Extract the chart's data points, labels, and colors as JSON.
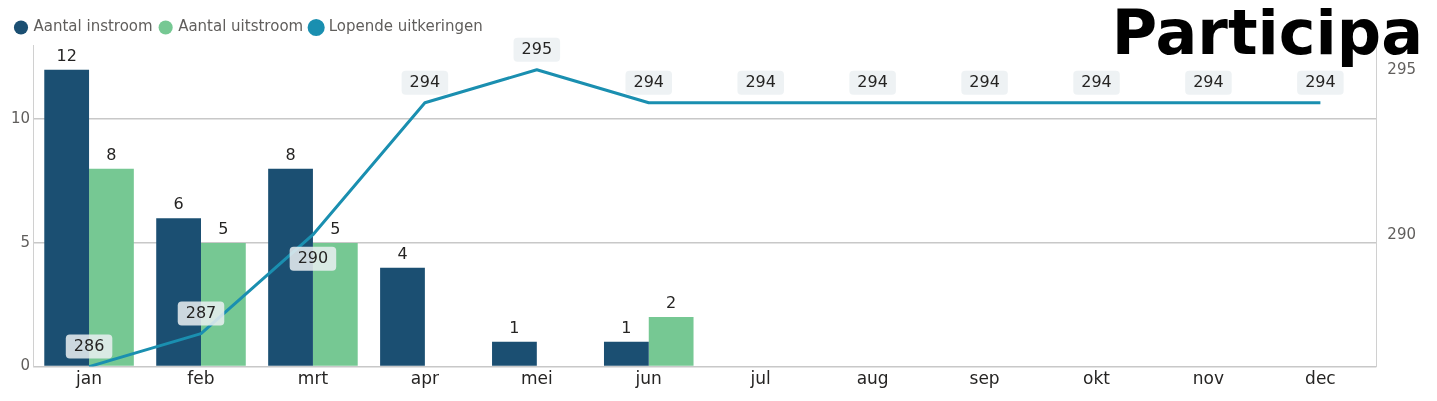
{
  "chart_data": {
    "type": "bar",
    "title": "Participa",
    "categories": [
      "jan",
      "feb",
      "mrt",
      "apr",
      "mei",
      "jun",
      "jul",
      "aug",
      "sep",
      "okt",
      "nov",
      "dec"
    ],
    "series": [
      {
        "name": "Aantal instroom",
        "color": "#1b4f72",
        "values": [
          12,
          6,
          8,
          4,
          1,
          1,
          null,
          null,
          null,
          null,
          null,
          null
        ]
      },
      {
        "name": "Aantal uitstroom",
        "color": "#76c893",
        "values": [
          8,
          5,
          5,
          null,
          null,
          2,
          null,
          null,
          null,
          null,
          null,
          null
        ]
      },
      {
        "name": "Lopende uitkeringen",
        "type": "line",
        "axis": "y2",
        "color": "#1a8fb0",
        "values": [
          286,
          287,
          290,
          294,
          295,
          294,
          294,
          294,
          294,
          294,
          294,
          294
        ]
      }
    ],
    "ylim": [
      0,
      13
    ],
    "yticks": [
      0,
      5,
      10
    ],
    "y2lim": [
      286,
      295.75
    ],
    "y2ticks": [
      290,
      295
    ],
    "grid": "y",
    "legend": "top left",
    "data_labels": true,
    "marker": "none"
  }
}
